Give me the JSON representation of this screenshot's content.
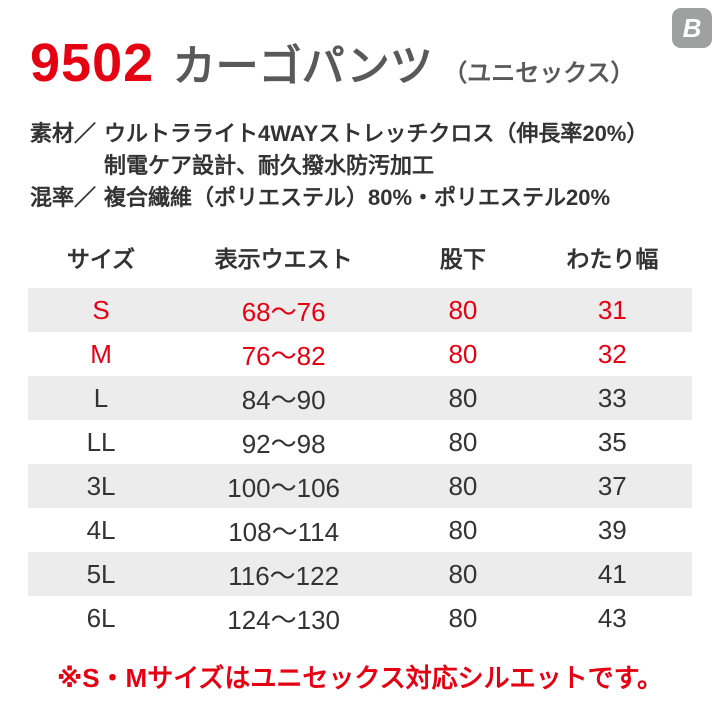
{
  "logo": {
    "letter": "B"
  },
  "header": {
    "product_code": "9502",
    "product_name": "カーゴパンツ",
    "product_note": "（ユニセックス）"
  },
  "specs": [
    {
      "label": "素材／",
      "text": "ウルトラライト4WAYストレッチクロス（伸長率20%）"
    },
    {
      "label": "",
      "text": "制電ケア設計、耐久撥水防汚加工"
    },
    {
      "label": "混率／",
      "text": "複合繊維（ポリエステル）80%・ポリエステル20%"
    }
  ],
  "size_table": {
    "headers": [
      "サイズ",
      "表示ウエスト",
      "股下",
      "わたり幅"
    ],
    "rows": [
      {
        "size": "S",
        "waist": "68〜76",
        "inseam": "80",
        "watari": "31"
      },
      {
        "size": "M",
        "waist": "76〜82",
        "inseam": "80",
        "watari": "32"
      },
      {
        "size": "L",
        "waist": "84〜90",
        "inseam": "80",
        "watari": "33"
      },
      {
        "size": "LL",
        "waist": "92〜98",
        "inseam": "80",
        "watari": "35"
      },
      {
        "size": "3L",
        "waist": "100〜106",
        "inseam": "80",
        "watari": "37"
      },
      {
        "size": "4L",
        "waist": "108〜114",
        "inseam": "80",
        "watari": "39"
      },
      {
        "size": "5L",
        "waist": "116〜122",
        "inseam": "80",
        "watari": "41"
      },
      {
        "size": "6L",
        "waist": "124〜130",
        "inseam": "80",
        "watari": "43"
      }
    ]
  },
  "footnote": "※S・Mサイズはユニセックス対応シルエットです。",
  "colors": {
    "accent_red": "#e50012",
    "title_gray": "#595959",
    "text_dark": "#333333",
    "stripe_gray": "#ececec",
    "logo_gray": "#9fa0a0"
  }
}
